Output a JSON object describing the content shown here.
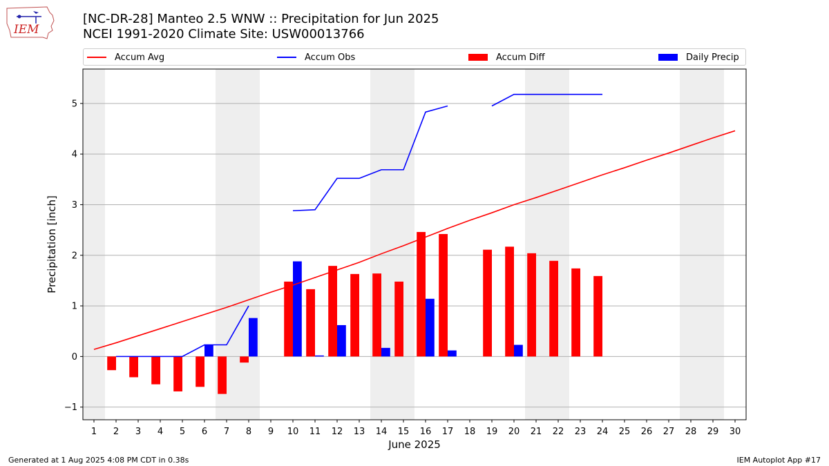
{
  "header": {
    "title_line1": "[NC-DR-28] Manteo 2.5 WNW :: Precipitation for Jun 2025",
    "title_line2": "NCEI 1991-2020 Climate Site: USW00013766"
  },
  "logo": {
    "text": "IEM"
  },
  "footer": {
    "left": "Generated at 1 Aug 2025 4:08 PM CDT in 0.38s",
    "right": "IEM Autoplot App #17"
  },
  "chart_data": {
    "type": "bar",
    "xlabel": "June 2025",
    "ylabel": "Precipitation [inch]",
    "xlim": [
      0.5,
      30.5
    ],
    "ylim": [
      -1.25,
      5.68
    ],
    "yticks": [
      -1,
      0,
      1,
      2,
      3,
      4,
      5
    ],
    "grid": "horizontal",
    "legend_position": "top",
    "weekend_days": [
      1,
      7,
      8,
      14,
      15,
      21,
      22,
      28,
      29
    ],
    "colors": {
      "avg": "#ff0000",
      "obs": "#0000ff",
      "diff": "#ff0000",
      "daily": "#0000ff",
      "weekend": "#eeeeee",
      "grid": "#b0b0b0"
    },
    "legend": [
      "Accum Avg",
      "Accum Obs",
      "Accum Diff",
      "Daily Precip"
    ],
    "days": [
      1,
      2,
      3,
      4,
      5,
      6,
      7,
      8,
      9,
      10,
      11,
      12,
      13,
      14,
      15,
      16,
      17,
      18,
      19,
      20,
      21,
      22,
      23,
      24,
      25,
      26,
      27,
      28,
      29,
      30
    ],
    "series": [
      {
        "name": "Accum Avg",
        "values": [
          0.14,
          0.27,
          0.41,
          0.55,
          0.69,
          0.83,
          0.97,
          1.12,
          1.27,
          1.41,
          1.56,
          1.71,
          1.86,
          2.03,
          2.19,
          2.36,
          2.53,
          2.69,
          2.84,
          3.0,
          3.14,
          3.29,
          3.44,
          3.59,
          3.73,
          3.88,
          4.02,
          4.17,
          4.32,
          4.46
        ]
      },
      {
        "name": "Accum Obs",
        "values": [
          null,
          0.0,
          0.0,
          0.0,
          0.0,
          0.23,
          0.23,
          1.0,
          null,
          2.88,
          2.9,
          3.52,
          3.52,
          3.69,
          3.69,
          4.83,
          4.95,
          null,
          4.95,
          5.18,
          5.18,
          5.18,
          5.18,
          5.18,
          null,
          null,
          null,
          null,
          null,
          null
        ]
      },
      {
        "name": "Accum Diff",
        "values": [
          null,
          -0.27,
          -0.41,
          -0.55,
          -0.69,
          -0.6,
          -0.74,
          -0.12,
          null,
          1.48,
          1.33,
          1.79,
          1.63,
          1.64,
          1.48,
          2.46,
          2.42,
          null,
          2.11,
          2.17,
          2.04,
          1.89,
          1.74,
          1.59,
          null,
          null,
          null,
          null,
          null,
          null
        ]
      },
      {
        "name": "Daily Precip",
        "values": [
          null,
          0.0,
          0.0,
          0.0,
          0.0,
          0.23,
          0.0,
          0.76,
          null,
          1.88,
          0.02,
          0.62,
          0.0,
          0.17,
          0.0,
          1.14,
          0.12,
          null,
          0.0,
          0.23,
          0.0,
          0.0,
          0.0,
          0.0,
          null,
          null,
          null,
          null,
          null,
          null
        ]
      }
    ]
  }
}
